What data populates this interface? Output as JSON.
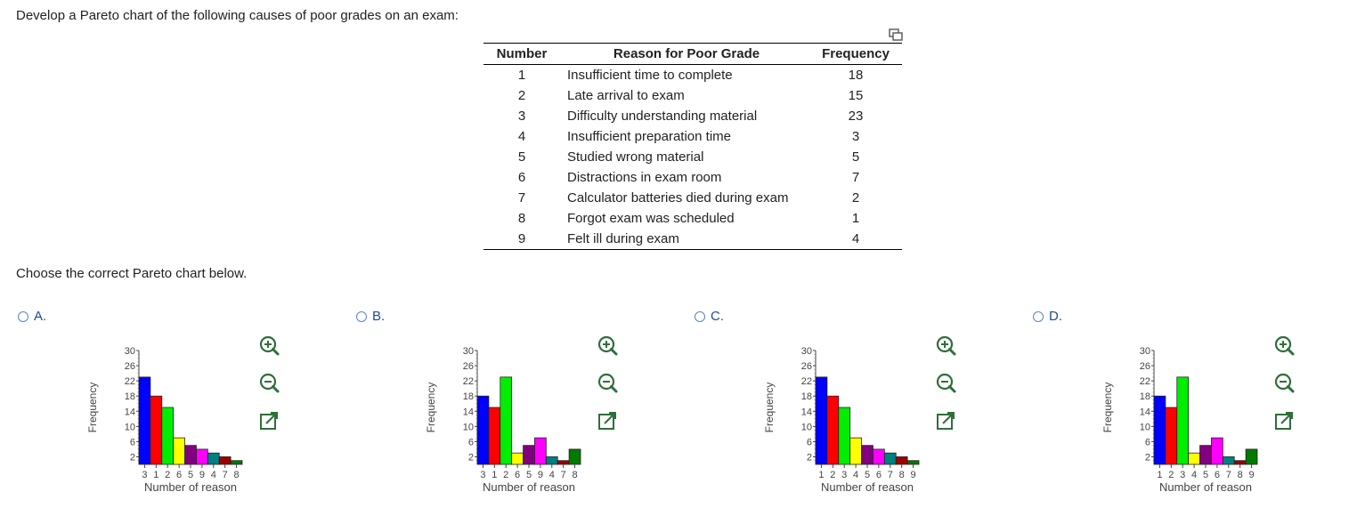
{
  "question": "Develop a Pareto chart of the following causes of poor grades on an exam:",
  "table": {
    "headers": [
      "Number",
      "Reason for Poor Grade",
      "Frequency"
    ],
    "rows": [
      {
        "number": "1",
        "reason": "Insufficient time to complete",
        "frequency": "18"
      },
      {
        "number": "2",
        "reason": "Late arrival to exam",
        "frequency": "15"
      },
      {
        "number": "3",
        "reason": "Difficulty understanding material",
        "frequency": "23"
      },
      {
        "number": "4",
        "reason": "Insufficient preparation time",
        "frequency": "3"
      },
      {
        "number": "5",
        "reason": "Studied wrong material",
        "frequency": "5"
      },
      {
        "number": "6",
        "reason": "Distractions in exam room",
        "frequency": "7"
      },
      {
        "number": "7",
        "reason": "Calculator batteries died during exam",
        "frequency": "2"
      },
      {
        "number": "8",
        "reason": "Forgot exam was scheduled",
        "frequency": "1"
      },
      {
        "number": "9",
        "reason": "Felt ill during exam",
        "frequency": "4"
      }
    ]
  },
  "prompt": "Choose the correct Pareto chart below.",
  "options": [
    {
      "letter": "A.",
      "tools": [
        "zoom-in",
        "zoom-out",
        "pop-out"
      ]
    },
    {
      "letter": "B.",
      "tools": [
        "zoom-in",
        "zoom-out",
        "pop-out"
      ]
    },
    {
      "letter": "C.",
      "tools": [
        "zoom-in",
        "zoom-out",
        "pop-out"
      ]
    },
    {
      "letter": "D.",
      "tools": [
        "zoom-in",
        "zoom-out",
        "pop-out"
      ]
    }
  ],
  "colors": {
    "option_link": "#1a4b9c",
    "radio_border": "#5a83c6",
    "tool_icon": "#2e6f3a",
    "bar_palette": [
      "#0000ff",
      "#ff0000",
      "#00ee00",
      "#ffff00",
      "#800080",
      "#ff00ff",
      "#008080",
      "#a00000",
      "#007a00"
    ]
  },
  "chart_data": [
    {
      "type": "bar",
      "option": "A.",
      "categories": [
        "3",
        "1",
        "2",
        "6",
        "5",
        "9",
        "4",
        "7",
        "8"
      ],
      "values": [
        23,
        18,
        15,
        7,
        5,
        4,
        3,
        2,
        1
      ],
      "xlabel": "Number of reason",
      "ylabel": "Frequency",
      "yticks": [
        2,
        6,
        10,
        14,
        18,
        22,
        26,
        30
      ],
      "ylim": [
        0,
        30
      ]
    },
    {
      "type": "bar",
      "option": "B.",
      "categories": [
        "3",
        "1",
        "2",
        "6",
        "5",
        "9",
        "4",
        "7",
        "8"
      ],
      "values": [
        18,
        15,
        23,
        3,
        5,
        7,
        2,
        1,
        4
      ],
      "xlabel": "Number of reason",
      "ylabel": "Frequency",
      "yticks": [
        2,
        6,
        10,
        14,
        18,
        22,
        26,
        30
      ],
      "ylim": [
        0,
        30
      ]
    },
    {
      "type": "bar",
      "option": "C.",
      "categories": [
        "1",
        "2",
        "3",
        "4",
        "5",
        "6",
        "7",
        "8",
        "9"
      ],
      "values": [
        23,
        18,
        15,
        7,
        5,
        4,
        3,
        2,
        1
      ],
      "xlabel": "Number of reason",
      "ylabel": "Frequency",
      "yticks": [
        2,
        6,
        10,
        14,
        18,
        22,
        26,
        30
      ],
      "ylim": [
        0,
        30
      ]
    },
    {
      "type": "bar",
      "option": "D.",
      "categories": [
        "1",
        "2",
        "3",
        "4",
        "5",
        "6",
        "7",
        "8",
        "9"
      ],
      "values": [
        18,
        15,
        23,
        3,
        5,
        7,
        2,
        1,
        4
      ],
      "xlabel": "Number of reason",
      "ylabel": "Frequency",
      "yticks": [
        2,
        6,
        10,
        14,
        18,
        22,
        26,
        30
      ],
      "ylim": [
        0,
        30
      ]
    }
  ]
}
